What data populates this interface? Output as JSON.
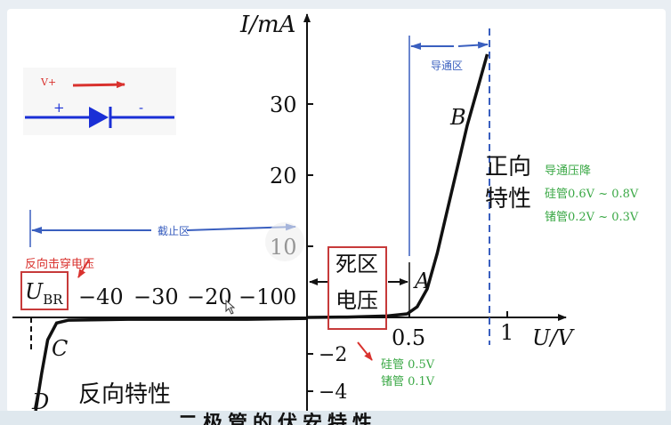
{
  "chart_data": {
    "type": "line",
    "x_axis_label": "U/V",
    "y_axis_label": "I/mA",
    "xlim": [
      -48,
      1.1
    ],
    "ylim": [
      -4.5,
      40
    ],
    "x_ticks_negative": [
      "−40",
      "−30",
      "−20",
      "−10",
      "0"
    ],
    "x_ticks_positive": [
      "0.5",
      "1"
    ],
    "y_ticks_positive": [
      "10",
      "20",
      "30"
    ],
    "y_ticks_negative": [
      "−2",
      "−4"
    ],
    "point_labels": {
      "A": "A",
      "B": "B",
      "C": "C",
      "D": "D"
    },
    "ubr_label": "U",
    "ubr_subscript": "BR",
    "forward_curve": [
      [
        0,
        0
      ],
      [
        0.2,
        0.05
      ],
      [
        0.4,
        0.2
      ],
      [
        0.5,
        0.5
      ],
      [
        0.55,
        1.5
      ],
      [
        0.6,
        4
      ],
      [
        0.65,
        9
      ],
      [
        0.7,
        15
      ],
      [
        0.75,
        21
      ],
      [
        0.8,
        27
      ],
      [
        0.85,
        32
      ],
      [
        0.9,
        37
      ]
    ],
    "reverse_curve": [
      [
        0,
        -0.05
      ],
      [
        -10,
        -0.1
      ],
      [
        -20,
        -0.1
      ],
      [
        -30,
        -0.1
      ],
      [
        -40,
        -0.15
      ],
      [
        -42,
        -0.3
      ],
      [
        -43.5,
        -1.2
      ],
      [
        -44.5,
        -3
      ],
      [
        -45.5,
        -5
      ]
    ],
    "annotations": {
      "forward_title_line1": "正向",
      "forward_title_line2": "特性",
      "reverse_title": "反向特性",
      "dead_zone_line1": "死区",
      "dead_zone_line2": "电压",
      "conduction_zone": "导通区",
      "cutoff_zone": "截止区",
      "breakdown_voltage": "反向击穿电压",
      "drop_title": "导通压降",
      "drop_si": "硅管0.6V ~ 0.8V",
      "drop_ge": "锗管0.2V ~ 0.3V",
      "dead_si": "硅管 0.5V",
      "dead_ge": "锗管 0.1V"
    },
    "colors": {
      "curve": "#111111",
      "blue": "#3a5fbf",
      "red": "#d9322e",
      "green": "#3aa845",
      "diode": "#1a2fd6"
    }
  },
  "inset": {
    "vplus": "V+",
    "plus": "+",
    "minus": "-"
  },
  "bottom_title": "二极管的伏安特性"
}
